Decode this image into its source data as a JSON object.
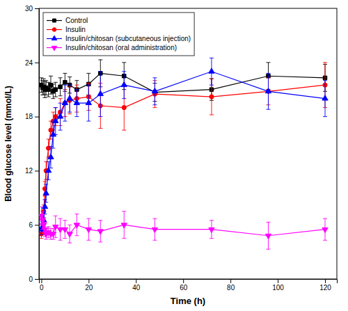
{
  "chart_data": {
    "type": "line",
    "xlabel": "Time (h)",
    "ylabel": "Blood glucose level (mmol/L)",
    "xlim": [
      -1,
      125
    ],
    "ylim": [
      0,
      30
    ],
    "xticks": [
      0,
      20,
      40,
      60,
      80,
      100,
      120
    ],
    "yticks": [
      0,
      6,
      12,
      18,
      24,
      30
    ],
    "grid": false,
    "legend": "upper left",
    "x": [
      0,
      0.5,
      1,
      1.5,
      2,
      3,
      4,
      5,
      6,
      8,
      10,
      12,
      15,
      20,
      25,
      35,
      48,
      72,
      96,
      120
    ],
    "series": [
      {
        "name": "Control",
        "color": "#000000",
        "marker": "square",
        "values": [
          21.5,
          21.2,
          21.3,
          21.0,
          21.2,
          21.0,
          21.5,
          20.8,
          21.0,
          21.3,
          21.8,
          21.5,
          21.0,
          21.6,
          22.8,
          22.5,
          20.7,
          21.0,
          22.5,
          22.3
        ],
        "yerr": [
          0.8,
          0.8,
          0.9,
          0.9,
          0.8,
          0.8,
          1.0,
          0.8,
          0.8,
          1.0,
          1.0,
          0.9,
          1.0,
          1.2,
          1.5,
          1.5,
          1.0,
          1.2,
          1.5,
          1.5
        ]
      },
      {
        "name": "Insulin",
        "color": "#ff0000",
        "marker": "circle",
        "values": [
          5.0,
          5.5,
          7.5,
          10.0,
          12.0,
          14.5,
          16.5,
          17.5,
          18.0,
          18.5,
          19.5,
          19.8,
          20.0,
          20.2,
          19.2,
          19.0,
          20.5,
          20.2,
          20.8,
          21.5
        ],
        "yerr": [
          0.5,
          0.6,
          0.7,
          0.8,
          1.0,
          1.0,
          1.0,
          1.0,
          1.0,
          1.5,
          1.5,
          1.5,
          1.5,
          1.5,
          2.5,
          2.5,
          1.5,
          2.0,
          1.5,
          2.5
        ]
      },
      {
        "name": "Insulin/chitosan (subcutaneous injection)",
        "color": "#0000ff",
        "marker": "triangle-up",
        "values": [
          5.5,
          5.8,
          6.5,
          8.0,
          9.5,
          12.0,
          13.5,
          16.0,
          17.5,
          18.0,
          19.5,
          20.0,
          19.5,
          19.5,
          20.5,
          21.5,
          20.8,
          23.0,
          20.8,
          20.0
        ],
        "yerr": [
          0.6,
          0.6,
          0.7,
          0.8,
          1.0,
          1.0,
          1.2,
          1.5,
          1.5,
          1.5,
          2.0,
          1.5,
          1.5,
          2.0,
          2.5,
          1.5,
          1.5,
          1.5,
          2.0,
          2.0
        ]
      },
      {
        "name": "Insulin/chitosan (oral administration)",
        "color": "#ff00ff",
        "marker": "triangle-down",
        "values": [
          7.0,
          6.5,
          6.0,
          5.5,
          5.0,
          5.2,
          5.0,
          5.0,
          5.8,
          5.5,
          5.5,
          5.0,
          6.0,
          5.5,
          5.3,
          6.0,
          5.5,
          5.5,
          4.8,
          5.5
        ],
        "yerr": [
          1.0,
          1.0,
          0.8,
          0.8,
          0.6,
          0.6,
          0.6,
          0.6,
          1.2,
          1.2,
          1.0,
          1.0,
          1.2,
          1.2,
          1.2,
          1.5,
          1.2,
          1.0,
          1.5,
          1.2
        ]
      }
    ]
  }
}
